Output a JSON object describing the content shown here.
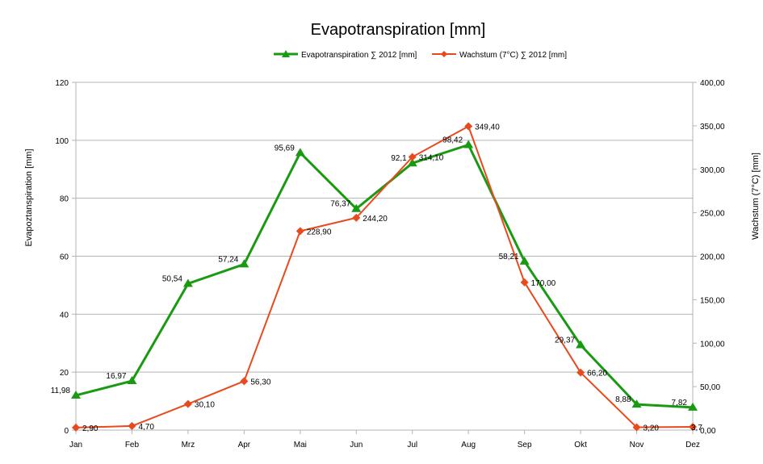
{
  "chart_data": {
    "type": "line",
    "title": "Evapotranspiration [mm]",
    "categories": [
      "Jan",
      "Feb",
      "Mrz",
      "Apr",
      "Mai",
      "Jun",
      "Jul",
      "Aug",
      "Sep",
      "Okt",
      "Nov",
      "Dez"
    ],
    "ylabel_left": "Evapoztanspiration [mm]",
    "ylabel_right": "Wachstum (7°C) [mm]",
    "ylim_left": [
      0,
      120
    ],
    "ylim_right": [
      0,
      400
    ],
    "yticks_left": [
      "0",
      "20",
      "40",
      "60",
      "80",
      "100",
      "120"
    ],
    "yticks_right": [
      "0,00",
      "50,00",
      "100,00",
      "150,00",
      "200,00",
      "250,00",
      "300,00",
      "350,00",
      "400,00"
    ],
    "grid": true,
    "legend_position": "top",
    "series": [
      {
        "name": "Evapotranspiration  ∑ 2012 [mm]",
        "axis": "left",
        "color": "#1a9a12",
        "marker": "triangle",
        "values": [
          11.98,
          16.97,
          50.54,
          57.24,
          95.69,
          76.37,
          92.1,
          98.42,
          58.21,
          29.37,
          8.88,
          7.82
        ],
        "labels": [
          "11,98",
          "16,97",
          "50,54",
          "57,24",
          "95,69",
          "76,37",
          "92,1",
          "98,42",
          "58,21",
          "29,37",
          "8,88",
          "7,82"
        ]
      },
      {
        "name": "Wachstum (7°C) ∑ 2012 [mm]",
        "axis": "right",
        "color": "#e84a1e",
        "marker": "diamond",
        "values": [
          2.9,
          4.7,
          30.1,
          56.3,
          228.9,
          244.2,
          314.1,
          349.4,
          170.0,
          66.2,
          3.2,
          3.7
        ],
        "labels": [
          "2,90",
          "4,70",
          "30,10",
          "56,30",
          "228,90",
          "244,20",
          "314,10",
          "349,40",
          "170,00",
          "66,20",
          "3,20",
          "3,7"
        ]
      }
    ]
  }
}
